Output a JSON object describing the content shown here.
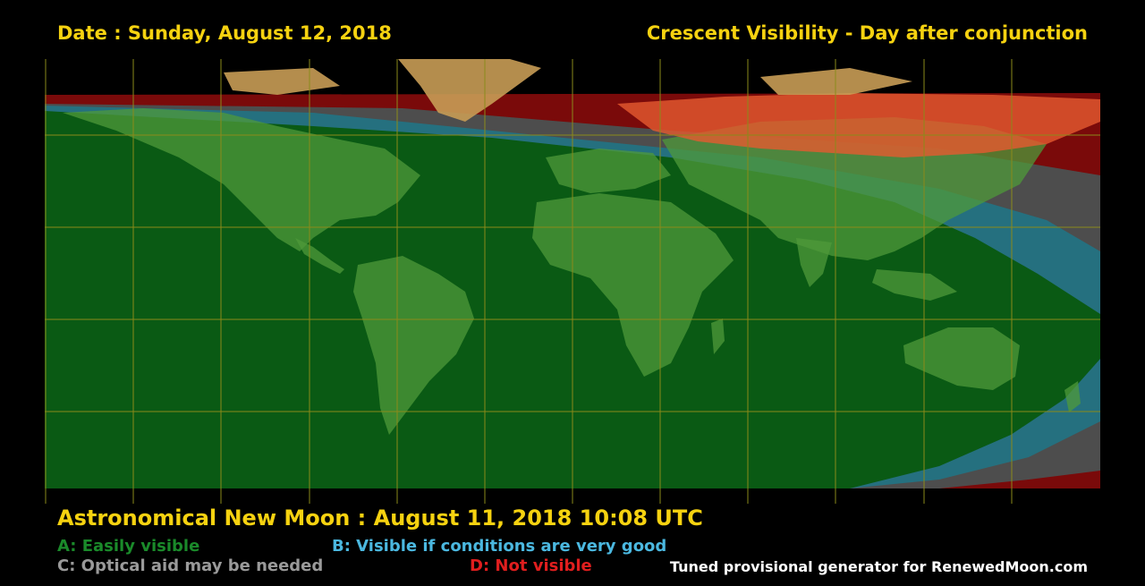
{
  "header": {
    "date": "Date : Sunday, August 12, 2018",
    "title": "Crescent Visibility - Day after conjunction"
  },
  "map": {
    "grid_color": "#8a8a1a",
    "colors": {
      "zone_a": "#0a5a14",
      "zone_b": "#25707f",
      "zone_c": "#4d4d4d",
      "zone_d": "#7a0a0a",
      "land": "#4f9a3a",
      "land_north": "#c89c55",
      "land_red": "#e65a30"
    }
  },
  "footer": {
    "new_moon": "Astronomical New Moon : August 11, 2018 10:08 UTC",
    "legend": [
      {
        "key": "A",
        "text": "A: Easily visible",
        "color": "#1a8a2a"
      },
      {
        "key": "B",
        "text": "B: Visible if conditions are very good",
        "color": "#4bb8e0"
      },
      {
        "key": "C",
        "text": "C: Optical aid may be needed",
        "color": "#9a9a9a"
      },
      {
        "key": "D",
        "text": "D: Not visible",
        "color": "#e01e1e"
      }
    ],
    "credit": "Tuned provisional generator for RenewedMoon.com"
  },
  "accent_color": "#f6d210"
}
